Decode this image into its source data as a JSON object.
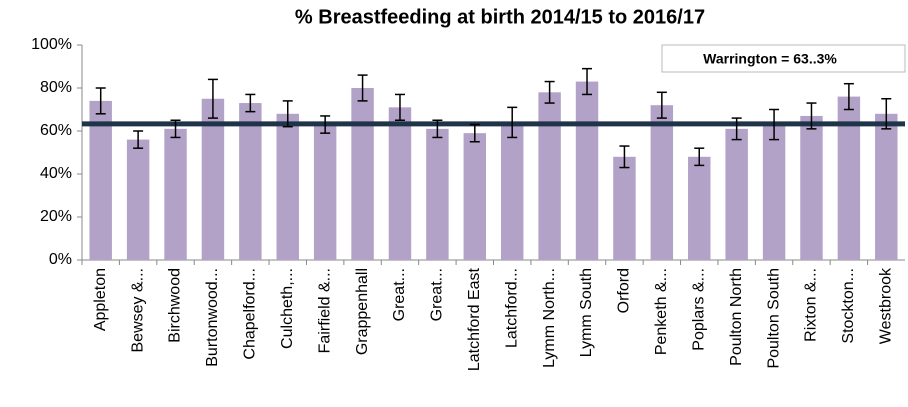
{
  "chart_data": {
    "type": "bar",
    "title": "% Breastfeeding at birth 2014/15 to 2016/17",
    "categories": [
      "Appleton",
      "Bewsey &...",
      "Birchwood",
      "Burtonwood...",
      "Chapelford...",
      "Culcheth,...",
      "Fairfield &...",
      "Grappenhall",
      "Great...",
      "Great...",
      "Latchford East",
      "Latchford...",
      "Lymm North...",
      "Lymm South",
      "Orford",
      "Penketh &...",
      "Poplars &...",
      "Poulton North",
      "Poulton South",
      "Rixton &...",
      "Stockton...",
      "Westbrook"
    ],
    "values": [
      74,
      56,
      61,
      75,
      73,
      68,
      63,
      80,
      71,
      61,
      59,
      64,
      78,
      83,
      48,
      72,
      48,
      61,
      63,
      67,
      76,
      68
    ],
    "errors": [
      6,
      4,
      4,
      9,
      4,
      6,
      4,
      6,
      6,
      4,
      4,
      7,
      5,
      6,
      5,
      6,
      4,
      5,
      7,
      6,
      6,
      7
    ],
    "color": "#b3a2c8",
    "reference_line": {
      "value": 63.3,
      "label": "Warrington = 63..3%",
      "color": "#1f3349"
    },
    "ylim": [
      0,
      100
    ],
    "yticks": [
      {
        "value": 0,
        "label": "0%"
      },
      {
        "value": 20,
        "label": "20%"
      },
      {
        "value": 40,
        "label": "40%"
      },
      {
        "value": 60,
        "label": "60%"
      },
      {
        "value": 80,
        "label": "80%"
      },
      {
        "value": 100,
        "label": "100%"
      }
    ],
    "grid": false
  }
}
